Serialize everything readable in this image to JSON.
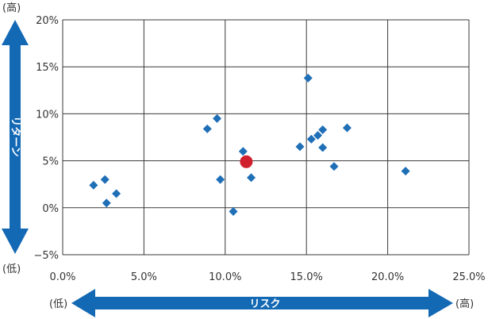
{
  "chart_data": {
    "type": "scatter",
    "xlabel": "リスク",
    "ylabel": "リターン",
    "xlim": [
      0,
      25
    ],
    "ylim": [
      -5,
      20
    ],
    "x_ticks": [
      0,
      5,
      10,
      15,
      20,
      25
    ],
    "y_ticks": [
      -5,
      0,
      5,
      10,
      15,
      20
    ],
    "x_tick_labels": [
      "0.0%",
      "5.0%",
      "10.0%",
      "15.0%",
      "20.0%",
      "25.0%"
    ],
    "y_tick_labels": [
      "−5%",
      "0%",
      "5%",
      "10%",
      "15%",
      "20%"
    ],
    "grid": true,
    "series": [
      {
        "marker": "diamond",
        "color": "#1f6fb7",
        "points": [
          {
            "x": 1.9,
            "y": 2.4
          },
          {
            "x": 2.6,
            "y": 3.0
          },
          {
            "x": 2.7,
            "y": 0.5
          },
          {
            "x": 3.3,
            "y": 1.5
          },
          {
            "x": 8.9,
            "y": 8.4
          },
          {
            "x": 9.5,
            "y": 9.5
          },
          {
            "x": 9.7,
            "y": 3.0
          },
          {
            "x": 10.5,
            "y": -0.4
          },
          {
            "x": 11.1,
            "y": 6.0
          },
          {
            "x": 11.6,
            "y": 3.2
          },
          {
            "x": 14.6,
            "y": 6.5
          },
          {
            "x": 15.1,
            "y": 13.8
          },
          {
            "x": 15.3,
            "y": 7.3
          },
          {
            "x": 15.7,
            "y": 7.7
          },
          {
            "x": 16.0,
            "y": 8.3
          },
          {
            "x": 16.0,
            "y": 6.4
          },
          {
            "x": 16.7,
            "y": 4.4
          },
          {
            "x": 17.5,
            "y": 8.5
          },
          {
            "x": 21.1,
            "y": 3.9
          }
        ]
      },
      {
        "marker": "circle",
        "color": "#d0202e",
        "points": [
          {
            "x": 11.3,
            "y": 4.9
          }
        ]
      }
    ]
  },
  "labels": {
    "y_high": "(高)",
    "y_low": "(低)",
    "x_low": "(低)",
    "x_high": "(高)"
  },
  "colors": {
    "arrow": "#1469b5",
    "grid": "#3a3a3a",
    "diamond": "#1f6fb7",
    "highlight": "#d0202e"
  }
}
